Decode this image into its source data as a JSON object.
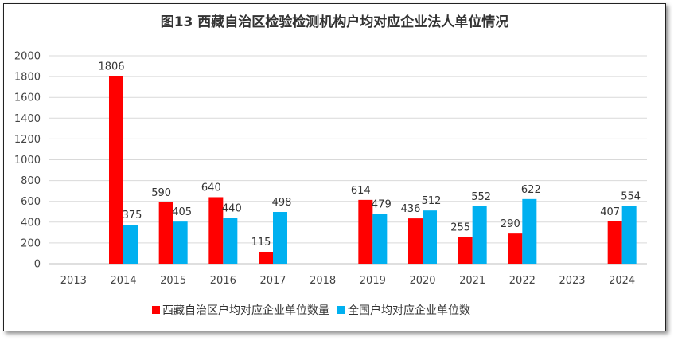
{
  "chart_data": {
    "type": "bar",
    "title": "图13  西藏自治区检验检测机构户均对应企业法人单位情况",
    "categories": [
      "2013",
      "2014",
      "2015",
      "2016",
      "2017",
      "2018",
      "2019",
      "2020",
      "2021",
      "2022",
      "2023",
      "2024"
    ],
    "series": [
      {
        "name": "西藏自治区户均对应企业单位数量",
        "color": "#ff0000",
        "values": [
          null,
          1806,
          590,
          640,
          115,
          null,
          614,
          436,
          255,
          290,
          null,
          407
        ]
      },
      {
        "name": "全国户均对应企业单位数",
        "color": "#00b0f0",
        "values": [
          null,
          375,
          405,
          440,
          498,
          null,
          479,
          512,
          552,
          622,
          null,
          554
        ]
      }
    ],
    "ylim": [
      0,
      2000
    ],
    "yticks": [
      0,
      200,
      400,
      600,
      800,
      1000,
      1200,
      1400,
      1600,
      1800,
      2000
    ],
    "grid": true,
    "legend": "bottom"
  }
}
